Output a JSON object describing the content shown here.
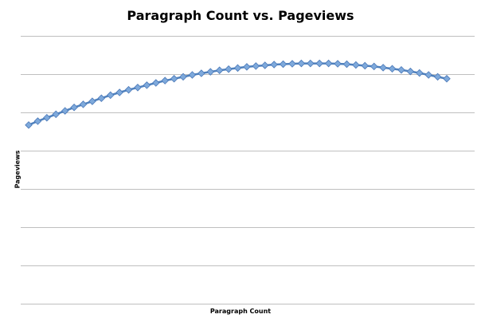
{
  "chart_data": {
    "type": "line",
    "title": "Paragraph Count vs. Pageviews",
    "xlabel": "Paragraph Count",
    "ylabel": "Pageviews",
    "y_gridlines": 7,
    "grid": true,
    "legend": "none",
    "colors": {
      "line": "#4f81bd",
      "marker_fill": "#7ea9db",
      "marker_stroke": "#4a78b8",
      "grid": "#bfbfbf"
    },
    "series": [
      {
        "values": [
          4.67,
          4.77,
          4.86,
          4.95,
          5.04,
          5.13,
          5.21,
          5.29,
          5.37,
          5.45,
          5.52,
          5.59,
          5.65,
          5.71,
          5.77,
          5.83,
          5.88,
          5.93,
          5.98,
          6.02,
          6.06,
          6.1,
          6.13,
          6.16,
          6.19,
          6.21,
          6.23,
          6.25,
          6.26,
          6.27,
          6.28,
          6.28,
          6.28,
          6.28,
          6.27,
          6.26,
          6.24,
          6.22,
          6.2,
          6.17,
          6.14,
          6.11,
          6.07,
          6.03,
          5.98,
          5.93,
          5.88
        ]
      }
    ],
    "ylim": [
      0,
      7
    ]
  }
}
